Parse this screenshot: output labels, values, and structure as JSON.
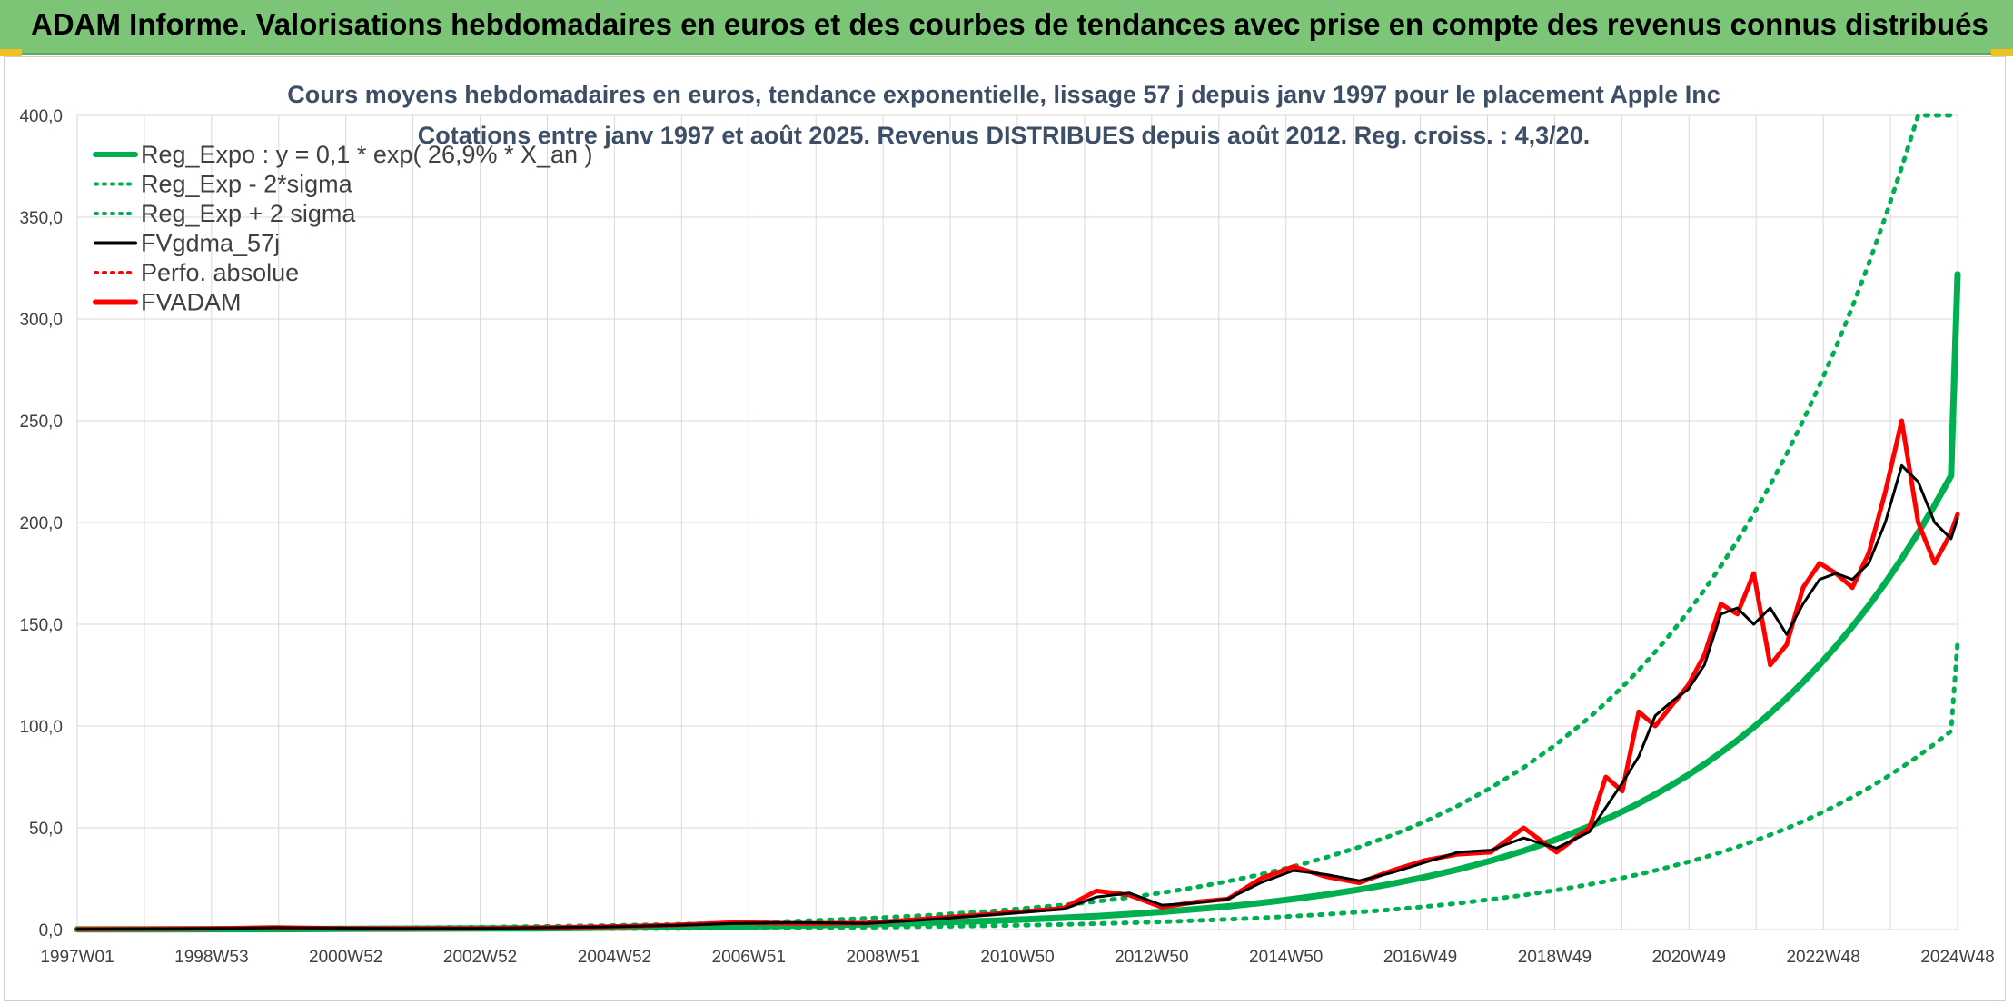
{
  "header": {
    "title": "ADAM Informe. Valorisations hebdomadaires en euros et des courbes de tendances avec prise en compte des revenus connus distribués"
  },
  "colors": {
    "header_bg": "#7cc576",
    "reg_expo": "#00b050",
    "sigma_bands": "#00b050",
    "fvgdma": "#000000",
    "perfo": "#ff0000",
    "fvadam": "#ff0000"
  },
  "chart_data": {
    "type": "line",
    "title_lines": [
      "Cours moyens hebdomadaires en euros, tendance exponentielle, lissage 57 j depuis janv 1997 pour le placement Apple Inc",
      "Cotations entre janv 1997 et août 2025. Revenus DISTRIBUES depuis août 2012. Reg. croiss. : 4,3/20."
    ],
    "ylim": [
      0,
      400
    ],
    "y_ticks": [
      "0,0",
      "50,0",
      "100,0",
      "150,0",
      "200,0",
      "250,0",
      "300,0",
      "350,0",
      "400,0"
    ],
    "x_tick_labels": [
      "1997W01",
      "1998W53",
      "2000W52",
      "2002W52",
      "2004W52",
      "2006W51",
      "2008W51",
      "2010W50",
      "2012W50",
      "2014W50",
      "2016W49",
      "2018W49",
      "2020W49",
      "2022W48",
      "2024W48"
    ],
    "grid": true,
    "legend_position": "top-left",
    "legend": [
      {
        "label": "Reg_Expo : y = 0,1 * exp( 26,9% *  X_an )",
        "style": "solid-thick",
        "color": "#00b050"
      },
      {
        "label": "Reg_Exp - 2*sigma",
        "style": "dotted",
        "color": "#00b050"
      },
      {
        "label": "Reg_Exp + 2 sigma",
        "style": "dotted",
        "color": "#00b050"
      },
      {
        "label": "FVgdma_57j",
        "style": "solid",
        "color": "#000000"
      },
      {
        "label": "Perfo. absolue",
        "style": "dotted",
        "color": "#ff0000"
      },
      {
        "label": "FVADAM",
        "style": "solid-thick",
        "color": "#ff0000"
      }
    ],
    "x_years": [
      1997.0,
      1998.0,
      1999.0,
      2000.0,
      2001.0,
      2002.0,
      2003.0,
      2004.0,
      2005.0,
      2006.0,
      2007.0,
      2008.0,
      2009.0,
      2010.0,
      2011.0,
      2012.0,
      2012.5,
      2013.0,
      2013.5,
      2014.0,
      2014.5,
      2015.0,
      2015.5,
      2016.0,
      2016.5,
      2017.0,
      2017.5,
      2018.0,
      2018.5,
      2019.0,
      2019.5,
      2020.0,
      2020.25,
      2020.5,
      2020.75,
      2021.0,
      2021.25,
      2021.5,
      2021.75,
      2022.0,
      2022.25,
      2022.5,
      2022.75,
      2023.0,
      2023.25,
      2023.5,
      2023.75,
      2024.0,
      2024.25,
      2024.5,
      2024.75,
      2025.0,
      2025.25,
      2025.5,
      2025.6
    ],
    "series": [
      {
        "name": "Reg_Expo : y = 0,1 * exp( 26,9% *  X_an )",
        "values": [
          0.1,
          0.1,
          0.2,
          0.2,
          0.3,
          0.4,
          0.5,
          0.6,
          0.9,
          1.2,
          1.5,
          2.0,
          2.6,
          3.4,
          4.4,
          5.8,
          6.6,
          7.6,
          8.7,
          10.0,
          11.4,
          13.1,
          15.0,
          17.2,
          19.7,
          22.5,
          25.8,
          29.5,
          33.8,
          38.7,
          44.3,
          50.7,
          54.2,
          58.0,
          62.0,
          66.4,
          71.0,
          75.9,
          81.2,
          86.9,
          92.9,
          99.4,
          106.3,
          113.7,
          121.6,
          130.1,
          139.2,
          148.9,
          159.2,
          170.3,
          182.2,
          194.9,
          208.5,
          223.0,
          322.0
        ]
      },
      {
        "name": "Reg_Exp - 2*sigma",
        "values": [
          0.0,
          0.0,
          0.1,
          0.1,
          0.1,
          0.2,
          0.2,
          0.3,
          0.4,
          0.5,
          0.7,
          0.9,
          1.1,
          1.5,
          1.9,
          2.5,
          2.9,
          3.3,
          3.8,
          4.4,
          5.0,
          5.7,
          6.6,
          7.5,
          8.6,
          9.8,
          11.3,
          12.9,
          14.8,
          16.9,
          19.4,
          22.2,
          23.7,
          25.4,
          27.1,
          29.0,
          31.1,
          33.2,
          35.5,
          38.0,
          40.6,
          43.5,
          46.5,
          49.7,
          53.2,
          56.9,
          60.9,
          65.1,
          69.6,
          74.5,
          79.7,
          85.2,
          91.2,
          97.5,
          141.0
        ]
      },
      {
        "name": "Reg_Exp + 2 sigma",
        "values": [
          0.2,
          0.3,
          0.4,
          0.5,
          0.7,
          0.9,
          1.1,
          1.5,
          1.9,
          2.5,
          3.2,
          4.2,
          5.5,
          7.1,
          9.3,
          12.1,
          13.8,
          15.8,
          18.1,
          20.7,
          23.7,
          27.1,
          31.0,
          35.5,
          40.6,
          46.4,
          53.1,
          60.8,
          69.6,
          79.6,
          91.1,
          104.2,
          111.5,
          119.2,
          127.5,
          136.4,
          145.9,
          156.1,
          166.9,
          178.6,
          191.0,
          204.3,
          218.5,
          233.7,
          250.0,
          267.4,
          286.0,
          306.0,
          327.3,
          350.1,
          374.5,
          400.0,
          400.0,
          400.0,
          400.0
        ]
      },
      {
        "name": "FVgdma_57j",
        "values": [
          0.2,
          0.3,
          0.5,
          0.9,
          0.7,
          0.5,
          0.6,
          0.9,
          1.3,
          2.0,
          3.0,
          3.5,
          3.0,
          5.0,
          7.5,
          10.0,
          16.0,
          18.0,
          12.0,
          13.0,
          15.0,
          23.0,
          29.0,
          27.0,
          24.0,
          28.0,
          33.0,
          38.0,
          39.0,
          45.0,
          40.0,
          48.0,
          60.0,
          72.0,
          85.0,
          105.0,
          112.0,
          118.0,
          130.0,
          155.0,
          158.0,
          150.0,
          158.0,
          145.0,
          160.0,
          172.0,
          175.0,
          172.0,
          180.0,
          200.0,
          228.0,
          220.0,
          200.0,
          192.0,
          202.0
        ]
      },
      {
        "name": "FVADAM",
        "values": [
          0.2,
          0.3,
          0.5,
          1.0,
          0.6,
          0.5,
          0.6,
          0.9,
          1.4,
          2.1,
          3.5,
          3.0,
          3.2,
          5.5,
          7.8,
          10.5,
          19.0,
          17.0,
          11.0,
          13.5,
          15.0,
          25.0,
          31.0,
          26.0,
          23.0,
          29.0,
          34.0,
          37.0,
          38.0,
          50.0,
          38.0,
          50.0,
          75.0,
          68.0,
          107.0,
          100.0,
          110.0,
          120.0,
          135.0,
          160.0,
          155.0,
          175.0,
          130.0,
          140.0,
          168.0,
          180.0,
          175.0,
          168.0,
          185.0,
          215.0,
          250.0,
          200.0,
          180.0,
          195.0,
          204.0
        ]
      }
    ]
  }
}
